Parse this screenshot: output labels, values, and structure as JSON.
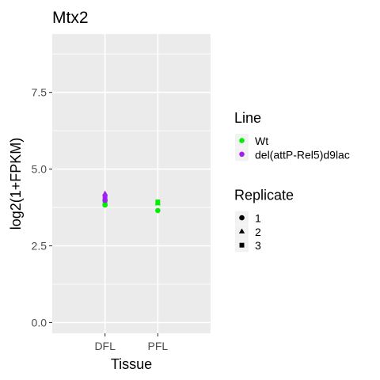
{
  "chart_data": {
    "type": "scatter",
    "title": "Mtx2",
    "xlabel": "Tissue",
    "ylabel": "log2(1+FPKM)",
    "categories": [
      "DFL",
      "PFL"
    ],
    "ylim": [
      -0.35,
      9.4
    ],
    "yticks": [
      0.0,
      2.5,
      5.0,
      7.5
    ],
    "ytick_labels": [
      "0.0",
      "2.5",
      "5.0",
      "7.5"
    ],
    "grid": true,
    "legend_position": "right",
    "legends": [
      {
        "title": "Line",
        "entries": [
          {
            "label": "Wt",
            "color": "#00ee00",
            "shape": "circle"
          },
          {
            "label": "del(attP-Rel5)d9lac",
            "color": "#a020f0",
            "shape": "circle"
          }
        ]
      },
      {
        "title": "Replicate",
        "entries": [
          {
            "label": "1",
            "color": "#000000",
            "shape": "circle"
          },
          {
            "label": "2",
            "color": "#000000",
            "shape": "triangle"
          },
          {
            "label": "3",
            "color": "#000000",
            "shape": "square"
          }
        ]
      }
    ],
    "points": [
      {
        "x": "DFL",
        "y": 3.83,
        "line": "Wt",
        "replicate": "1"
      },
      {
        "x": "DFL",
        "y": 3.9,
        "line": "Wt",
        "replicate": "2"
      },
      {
        "x": "DFL",
        "y": 3.95,
        "line": "Wt",
        "replicate": "3"
      },
      {
        "x": "DFL",
        "y": 3.98,
        "line": "del(attP-Rel5)d9lac",
        "replicate": "1"
      },
      {
        "x": "DFL",
        "y": 4.1,
        "line": "del(attP-Rel5)d9lac",
        "replicate": "3"
      },
      {
        "x": "DFL",
        "y": 4.2,
        "line": "del(attP-Rel5)d9lac",
        "replicate": "2"
      },
      {
        "x": "PFL",
        "y": 3.65,
        "line": "Wt",
        "replicate": "1"
      },
      {
        "x": "PFL",
        "y": 3.88,
        "line": "Wt",
        "replicate": "2"
      },
      {
        "x": "PFL",
        "y": 3.93,
        "line": "Wt",
        "replicate": "3"
      }
    ]
  }
}
